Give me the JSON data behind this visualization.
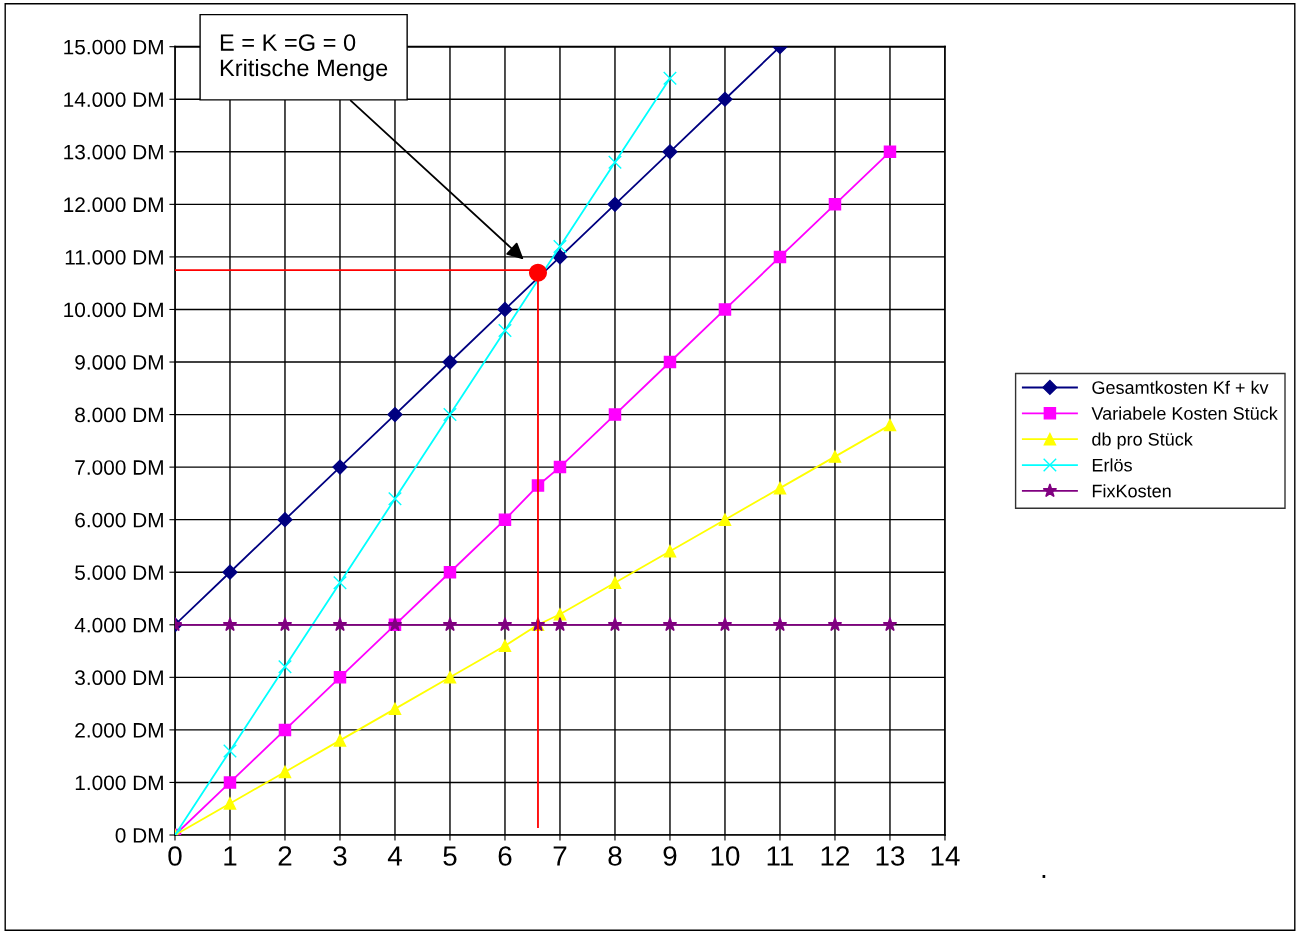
{
  "chart_data": {
    "type": "line",
    "xlim": [
      0,
      14
    ],
    "xticks": [
      0,
      1,
      2,
      3,
      4,
      5,
      6,
      7,
      8,
      9,
      10,
      11,
      12,
      13,
      14
    ],
    "ylim": [
      0,
      15000
    ],
    "yticks": [
      {
        "value": 0,
        "label": "0 DM"
      },
      {
        "value": 1000,
        "label": "1.000 DM"
      },
      {
        "value": 2000,
        "label": "2.000 DM"
      },
      {
        "value": 3000,
        "label": "3.000 DM"
      },
      {
        "value": 4000,
        "label": "4.000 DM"
      },
      {
        "value": 5000,
        "label": "5.000 DM"
      },
      {
        "value": 6000,
        "label": "6.000 DM"
      },
      {
        "value": 7000,
        "label": "7.000 DM"
      },
      {
        "value": 8000,
        "label": "8.000 DM"
      },
      {
        "value": 9000,
        "label": "9.000 DM"
      },
      {
        "value": 10000,
        "label": "10.000 DM"
      },
      {
        "value": 11000,
        "label": "11.000 DM"
      },
      {
        "value": 12000,
        "label": "12.000 DM"
      },
      {
        "value": 13000,
        "label": "13.000 DM"
      },
      {
        "value": 14000,
        "label": "14.000 DM"
      },
      {
        "value": 15000,
        "label": "15.000 DM"
      }
    ],
    "grid": true,
    "legend": "right",
    "series": [
      {
        "name": "Gesamtkosten Kf + kv",
        "color": "#000080",
        "marker": "diamond",
        "x": [
          0,
          1,
          2,
          3,
          4,
          5,
          6,
          7,
          8,
          9,
          10,
          11
        ],
        "values": [
          4000,
          5000,
          6000,
          7000,
          8000,
          9000,
          10000,
          11000,
          12000,
          13000,
          14000,
          15000
        ]
      },
      {
        "name": "Variabele Kosten Stück",
        "color": "#ff00ff",
        "marker": "square",
        "x": [
          0,
          1,
          2,
          3,
          4,
          5,
          6,
          6.6,
          7,
          8,
          9,
          10,
          11,
          12,
          13
        ],
        "values": [
          0,
          1000,
          2000,
          3000,
          4000,
          5000,
          6000,
          6650,
          7000,
          8000,
          9000,
          10000,
          11000,
          12000,
          13000
        ]
      },
      {
        "name": "db pro Stück",
        "color": "#ffff00",
        "marker": "triangle",
        "x": [
          0,
          1,
          2,
          3,
          4,
          5,
          6,
          6.6,
          7,
          8,
          9,
          10,
          11,
          12,
          13
        ],
        "values": [
          0,
          600,
          1200,
          1800,
          2400,
          3000,
          3600,
          4000,
          4200,
          4800,
          5400,
          6000,
          6600,
          7200,
          7800
        ]
      },
      {
        "name": "Erlös",
        "color": "#00ffff",
        "marker": "cross",
        "x": [
          0,
          1,
          2,
          3,
          4,
          5,
          6,
          7,
          8,
          9
        ],
        "values": [
          0,
          1600,
          3200,
          4800,
          6400,
          8000,
          9600,
          11200,
          12800,
          14400
        ]
      },
      {
        "name": "FixKosten",
        "color": "#800080",
        "marker": "star",
        "x": [
          0,
          1,
          2,
          3,
          4,
          5,
          6,
          6.6,
          7,
          8,
          9,
          10,
          11,
          12,
          13
        ],
        "values": [
          4000,
          4000,
          4000,
          4000,
          4000,
          4000,
          4000,
          4000,
          4000,
          4000,
          4000,
          4000,
          4000,
          4000,
          4000
        ]
      },
      {
        "color": "#ff0000",
        "marker": "none",
        "x": [
          0,
          6.6,
          6.6
        ],
        "values": [
          10750,
          10750,
          150
        ]
      },
      {
        "type": "scatter",
        "color": "#ff0000",
        "marker": "circle",
        "x": [
          6.6
        ],
        "values": [
          10700
        ]
      }
    ],
    "annotations": [
      "E = K =G = 0\nKritische Menge",
      "."
    ]
  }
}
